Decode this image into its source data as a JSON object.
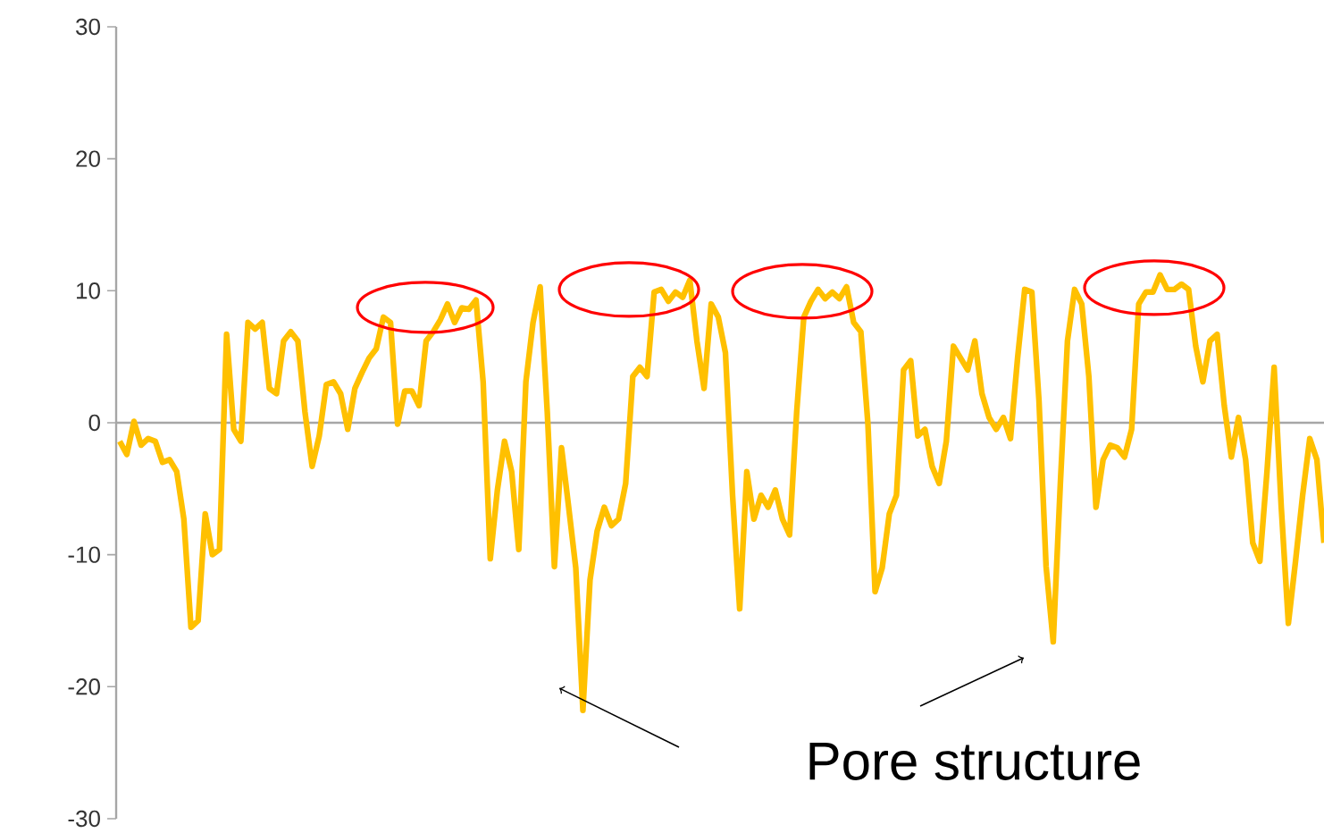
{
  "chart_data": {
    "type": "line",
    "categories": [
      null,
      null,
      null,
      null,
      null,
      null,
      null,
      null,
      null,
      null,
      null,
      null,
      null,
      null,
      null,
      null,
      null,
      null,
      null,
      null,
      null,
      null,
      null,
      null,
      null,
      null,
      null,
      null,
      null,
      null,
      null,
      null,
      null,
      null,
      null,
      null,
      null,
      null,
      null,
      null,
      null,
      null,
      null,
      null,
      null,
      null,
      null,
      null,
      null,
      null,
      null,
      null,
      null,
      null,
      null,
      null,
      null,
      null,
      null,
      null,
      null,
      null,
      null,
      null,
      null,
      null,
      null,
      null,
      null,
      null,
      null,
      null,
      null,
      null,
      null,
      null,
      null,
      null,
      null,
      null,
      null,
      null,
      null,
      null,
      null,
      null,
      null,
      null,
      null,
      null,
      null,
      null,
      null,
      null,
      null,
      null,
      null,
      null,
      null,
      null,
      null,
      null,
      null,
      null,
      null,
      null,
      null,
      null,
      null,
      null,
      null,
      null,
      null,
      null,
      null,
      null,
      null,
      null,
      null,
      null,
      null,
      null,
      null,
      null,
      null,
      null,
      null,
      null,
      null,
      null,
      null,
      null,
      null,
      null,
      null,
      null,
      null,
      null,
      null,
      null,
      null,
      null,
      null,
      null,
      null,
      null,
      null,
      null,
      null,
      null,
      null,
      null,
      null,
      null,
      null,
      null,
      null,
      null,
      null,
      null,
      null,
      null,
      null,
      null,
      null,
      null,
      null,
      null,
      null,
      null
    ],
    "series": [
      {
        "color": "#ffc000",
        "values": [
          -1.4,
          -2.4,
          0.1,
          -1.7,
          -1.2,
          -1.4,
          -3,
          -2.8,
          -3.7,
          -7.3,
          -15.5,
          -15,
          -6.9,
          -10,
          -9.6,
          6.7,
          -0.5,
          -1.4,
          7.6,
          7.1,
          7.6,
          2.6,
          2.2,
          6.2,
          6.9,
          6.2,
          0.8,
          -3.3,
          -1,
          2.9,
          3.1,
          2.2,
          -0.5,
          2.6,
          3.8,
          4.9,
          5.6,
          8,
          7.6,
          -0.1,
          2.4,
          2.4,
          1.3,
          6.2,
          6.9,
          7.8,
          9,
          7.6,
          8.7,
          8.6,
          9.3,
          3.1,
          -10.3,
          -5.1,
          -1.4,
          -3.7,
          -9.6,
          3.1,
          7.6,
          10.3,
          0.8,
          -10.9,
          -1.9,
          -6.4,
          -11,
          -21.8,
          -11.9,
          -8.2,
          -6.4,
          -7.8,
          -7.3,
          -4.6,
          3.5,
          4.2,
          3.5,
          9.9,
          10.1,
          9.2,
          9.9,
          9.5,
          10.8,
          6.2,
          2.6,
          9,
          8,
          5.3,
          -5.5,
          -14.1,
          -3.7,
          -7.3,
          -5.5,
          -6.4,
          -5.1,
          -7.3,
          -8.5,
          0.8,
          8,
          9.2,
          10.1,
          9.4,
          9.9,
          9.4,
          10.3,
          7.6,
          6.9,
          -0.1,
          -12.8,
          -11,
          -6.9,
          -5.5,
          4,
          4.7,
          -1,
          -0.5,
          -3.3,
          -4.6,
          -1.4,
          5.8,
          4.9,
          4,
          6.2,
          2.2,
          0.4,
          -0.5,
          0.4,
          -1.2,
          4.9,
          10.1,
          9.9,
          1.7,
          -10.9,
          -16.6,
          -4.6,
          6.2,
          10.1,
          9,
          3.5,
          -6.4,
          -2.8,
          -1.7,
          -1.9,
          -2.6,
          -0.5,
          9,
          9.9,
          9.9,
          11.2,
          10.1,
          10.1,
          10.5,
          10.1,
          5.8,
          3.1,
          6.2,
          6.7,
          1.3,
          -2.6,
          0.4,
          -2.8,
          -9.1,
          -10.5,
          -3.7,
          4.2,
          -6.4,
          -15.2,
          -10.5,
          -5.5,
          -1.2,
          -2.8,
          -9.1
        ]
      }
    ],
    "ylim": [
      -30,
      30
    ],
    "yticks": [
      -30,
      -20,
      -10,
      0,
      10,
      20,
      30
    ],
    "tick_labels": "y",
    "marker": "none",
    "line_style": "solid",
    "annotations": [
      "Pore structure"
    ]
  }
}
